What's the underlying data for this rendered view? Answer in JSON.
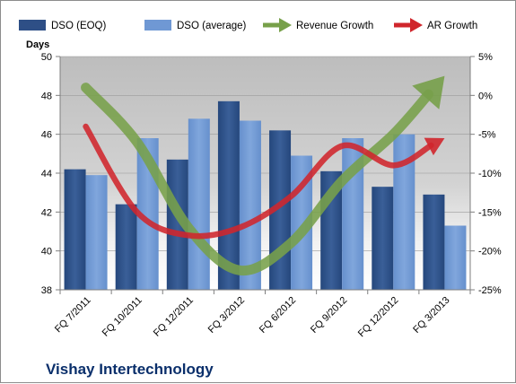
{
  "chart_data": {
    "type": "bar",
    "title": "",
    "company": "Vishay Intertechnology",
    "ylabel": "Days",
    "categories": [
      "FQ 7/2011",
      "FQ 10/2011",
      "FQ 12/2011",
      "FQ 3/2012",
      "FQ 6/2012",
      "FQ 9/2012",
      "FQ 12/2012",
      "FQ 3/2013"
    ],
    "ylim": [
      38,
      50
    ],
    "yticks": [
      "38",
      "40",
      "42",
      "44",
      "46",
      "48",
      "50"
    ],
    "y2lim": [
      -25,
      5
    ],
    "y2ticks": [
      "-25%",
      "-20%",
      "-15%",
      "-10%",
      "-5%",
      "0%",
      "5%"
    ],
    "series": [
      {
        "name": "DSO (EOQ)",
        "type": "bar",
        "color": "#2e4f86",
        "values": [
          44.2,
          42.4,
          44.7,
          47.7,
          46.2,
          44.1,
          43.3,
          42.9
        ]
      },
      {
        "name": "DSO (average)",
        "type": "bar",
        "color": "#6f98d4",
        "values": [
          43.9,
          45.8,
          46.8,
          46.7,
          44.9,
          45.8,
          46.0,
          41.3
        ]
      },
      {
        "name": "Revenue Growth",
        "type": "arrow-line",
        "axis": "right",
        "color": "#77a04a",
        "values": [
          1.0,
          -6.0,
          -17.0,
          -22.5,
          -19.0,
          -11.0,
          -5.0,
          2.5
        ]
      },
      {
        "name": "AR Growth",
        "type": "arrow-line",
        "axis": "right",
        "color": "#d0262c",
        "values": [
          -4.0,
          -15.0,
          -18.0,
          -17.0,
          -13.0,
          -6.5,
          -9.0,
          -5.5
        ]
      }
    ],
    "legend_position": "top",
    "grid": true
  }
}
